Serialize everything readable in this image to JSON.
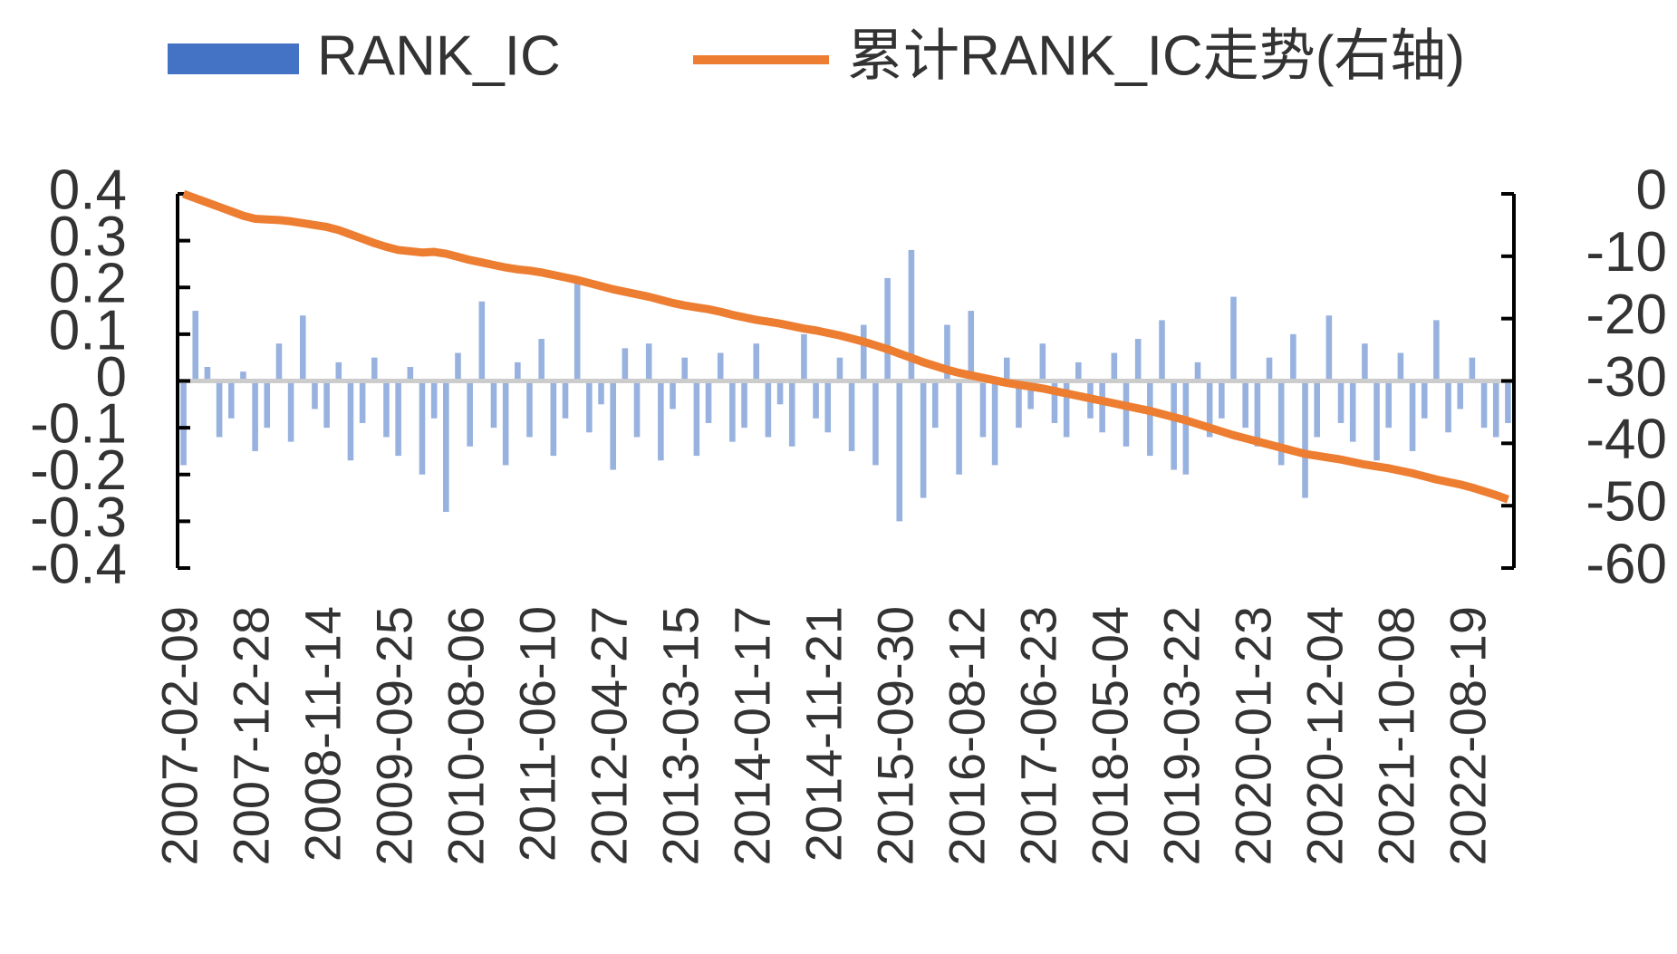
{
  "chart_data": {
    "type": "bar",
    "legend": "top",
    "categories": [
      "2007-02-09",
      null,
      null,
      null,
      null,
      null,
      "2007-12-28",
      null,
      null,
      null,
      null,
      null,
      "2008-11-14",
      null,
      null,
      null,
      null,
      null,
      "2009-09-25",
      null,
      null,
      null,
      null,
      null,
      "2010-08-06",
      null,
      null,
      null,
      null,
      null,
      "2011-06-10",
      null,
      null,
      null,
      null,
      null,
      "2012-04-27",
      null,
      null,
      null,
      null,
      null,
      "2013-03-15",
      null,
      null,
      null,
      null,
      null,
      "2014-01-17",
      null,
      null,
      null,
      null,
      null,
      "2014-11-21",
      null,
      null,
      null,
      null,
      null,
      "2015-09-30",
      null,
      null,
      null,
      null,
      null,
      "2016-08-12",
      null,
      null,
      null,
      null,
      null,
      "2017-06-23",
      null,
      null,
      null,
      null,
      null,
      "2018-05-04",
      null,
      null,
      null,
      null,
      null,
      "2019-03-22",
      null,
      null,
      null,
      null,
      null,
      "2020-01-23",
      null,
      null,
      null,
      null,
      null,
      "2020-12-04",
      null,
      null,
      null,
      null,
      null,
      "2021-10-08",
      null,
      null,
      null,
      null,
      null,
      "2022-08-19",
      null,
      null,
      null
    ],
    "series": [
      {
        "name": "RANK_IC",
        "color": "#4472c4",
        "type": "bar",
        "values": [
          -0.18,
          0.15,
          0.03,
          -0.12,
          -0.08,
          0.02,
          -0.15,
          -0.1,
          0.08,
          -0.13,
          0.14,
          -0.06,
          -0.1,
          0.04,
          -0.17,
          -0.09,
          0.05,
          -0.12,
          -0.16,
          0.03,
          -0.2,
          -0.08,
          -0.28,
          0.06,
          -0.14,
          0.17,
          -0.1,
          -0.18,
          0.04,
          -0.12,
          0.09,
          -0.16,
          -0.08,
          0.22,
          -0.11,
          -0.05,
          -0.19,
          0.07,
          -0.12,
          0.08,
          -0.17,
          -0.06,
          0.05,
          -0.16,
          -0.09,
          0.06,
          -0.13,
          -0.1,
          0.08,
          -0.12,
          -0.05,
          -0.14,
          0.1,
          -0.08,
          -0.11,
          0.05,
          -0.15,
          0.12,
          -0.18,
          0.22,
          -0.3,
          0.28,
          -0.25,
          -0.1,
          0.12,
          -0.2,
          0.15,
          -0.12,
          -0.18,
          0.05,
          -0.1,
          -0.06,
          0.08,
          -0.09,
          -0.12,
          0.04,
          -0.08,
          -0.11,
          0.06,
          -0.14,
          0.09,
          -0.16,
          0.13,
          -0.19,
          -0.2,
          0.04,
          -0.12,
          -0.08,
          0.18,
          -0.1,
          -0.14,
          0.05,
          -0.18,
          0.1,
          -0.25,
          -0.12,
          0.14,
          -0.09,
          -0.13,
          0.08,
          -0.17,
          -0.1,
          0.06,
          -0.15,
          -0.08,
          0.13,
          -0.11,
          -0.06,
          0.05,
          -0.1,
          -0.12,
          -0.09
        ]
      },
      {
        "name": "累计RANK_IC走势(右轴)",
        "color": "#ed7d31",
        "type": "line",
        "axis": "y2",
        "values": [
          0,
          -0.7,
          -1.4,
          -2.1,
          -2.8,
          -3.5,
          -4,
          -4.1,
          -4.2,
          -4.4,
          -4.7,
          -5,
          -5.3,
          -5.8,
          -6.5,
          -7.2,
          -7.9,
          -8.5,
          -9,
          -9.2,
          -9.4,
          -9.3,
          -9.6,
          -10.1,
          -10.6,
          -11,
          -11.4,
          -11.8,
          -12.1,
          -12.3,
          -12.6,
          -13,
          -13.4,
          -13.8,
          -14.3,
          -14.8,
          -15.3,
          -15.7,
          -16.1,
          -16.5,
          -17,
          -17.5,
          -17.9,
          -18.2,
          -18.5,
          -18.9,
          -19.4,
          -19.8,
          -20.2,
          -20.5,
          -20.8,
          -21.2,
          -21.6,
          -21.9,
          -22.3,
          -22.7,
          -23.2,
          -23.7,
          -24.3,
          -24.9,
          -25.6,
          -26.3,
          -27,
          -27.6,
          -28.2,
          -28.7,
          -29.1,
          -29.5,
          -29.9,
          -30.3,
          -30.6,
          -30.9,
          -31.2,
          -31.6,
          -32,
          -32.4,
          -32.8,
          -33.2,
          -33.6,
          -34,
          -34.4,
          -34.8,
          -35.3,
          -35.8,
          -36.3,
          -36.9,
          -37.5,
          -38.1,
          -38.7,
          -39.2,
          -39.7,
          -40.2,
          -40.7,
          -41.2,
          -41.7,
          -42,
          -42.3,
          -42.6,
          -43,
          -43.4,
          -43.7,
          -44,
          -44.4,
          -44.8,
          -45.3,
          -45.8,
          -46.2,
          -46.6,
          -47.1,
          -47.7,
          -48.3,
          -49
        ]
      }
    ],
    "ylim": [
      -0.4,
      0.4
    ],
    "yticks": [
      -0.4,
      -0.3,
      -0.2,
      -0.1,
      0,
      0.1,
      0.2,
      0.3,
      0.4
    ],
    "y2lim": [
      -60,
      0
    ],
    "y2ticks": [
      -60,
      -50,
      -40,
      -30,
      -20,
      -10,
      0
    ]
  }
}
